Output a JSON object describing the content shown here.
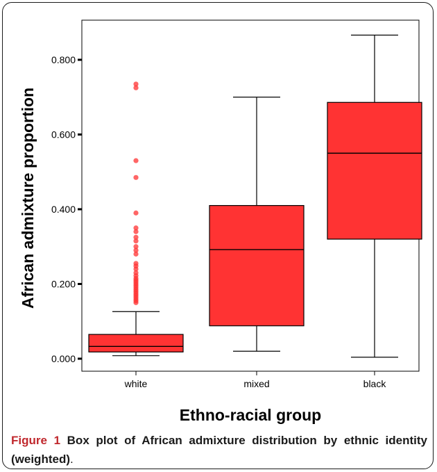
{
  "chart_data": {
    "type": "box",
    "ylabel": "African admixture proportion",
    "xlabel": "Ethno-racial group",
    "ylim": [
      -0.02,
      0.91
    ],
    "yticks": [
      0.0,
      0.2,
      0.4,
      0.6,
      0.8
    ],
    "ytick_labels": [
      "0.000",
      "0.200",
      "0.400",
      "0.600",
      "0.800"
    ],
    "categories": [
      "white",
      "mixed",
      "black"
    ],
    "boxes": [
      {
        "category": "white",
        "whisker_low": 0.008,
        "q1": 0.018,
        "median": 0.033,
        "q3": 0.065,
        "whisker_high": 0.126,
        "outliers": [
          0.15,
          0.155,
          0.16,
          0.165,
          0.17,
          0.175,
          0.18,
          0.185,
          0.19,
          0.195,
          0.2,
          0.205,
          0.21,
          0.215,
          0.222,
          0.23,
          0.24,
          0.248,
          0.255,
          0.28,
          0.29,
          0.3,
          0.315,
          0.325,
          0.34,
          0.35,
          0.39,
          0.485,
          0.53,
          0.725,
          0.735
        ]
      },
      {
        "category": "mixed",
        "whisker_low": 0.02,
        "q1": 0.088,
        "median": 0.292,
        "q3": 0.41,
        "whisker_high": 0.7,
        "outliers": []
      },
      {
        "category": "black",
        "whisker_low": 0.004,
        "q1": 0.32,
        "median": 0.55,
        "q3": 0.686,
        "whisker_high": 0.866,
        "outliers": []
      }
    ],
    "colors": {
      "box_fill": "#ff3333",
      "outlier": "#ff3333",
      "line": "#000000"
    }
  },
  "caption": {
    "label": "Figure 1",
    "bold_text": "Box plot of African admixture distribution by ethnic identity (weighted)",
    "tail": "."
  }
}
